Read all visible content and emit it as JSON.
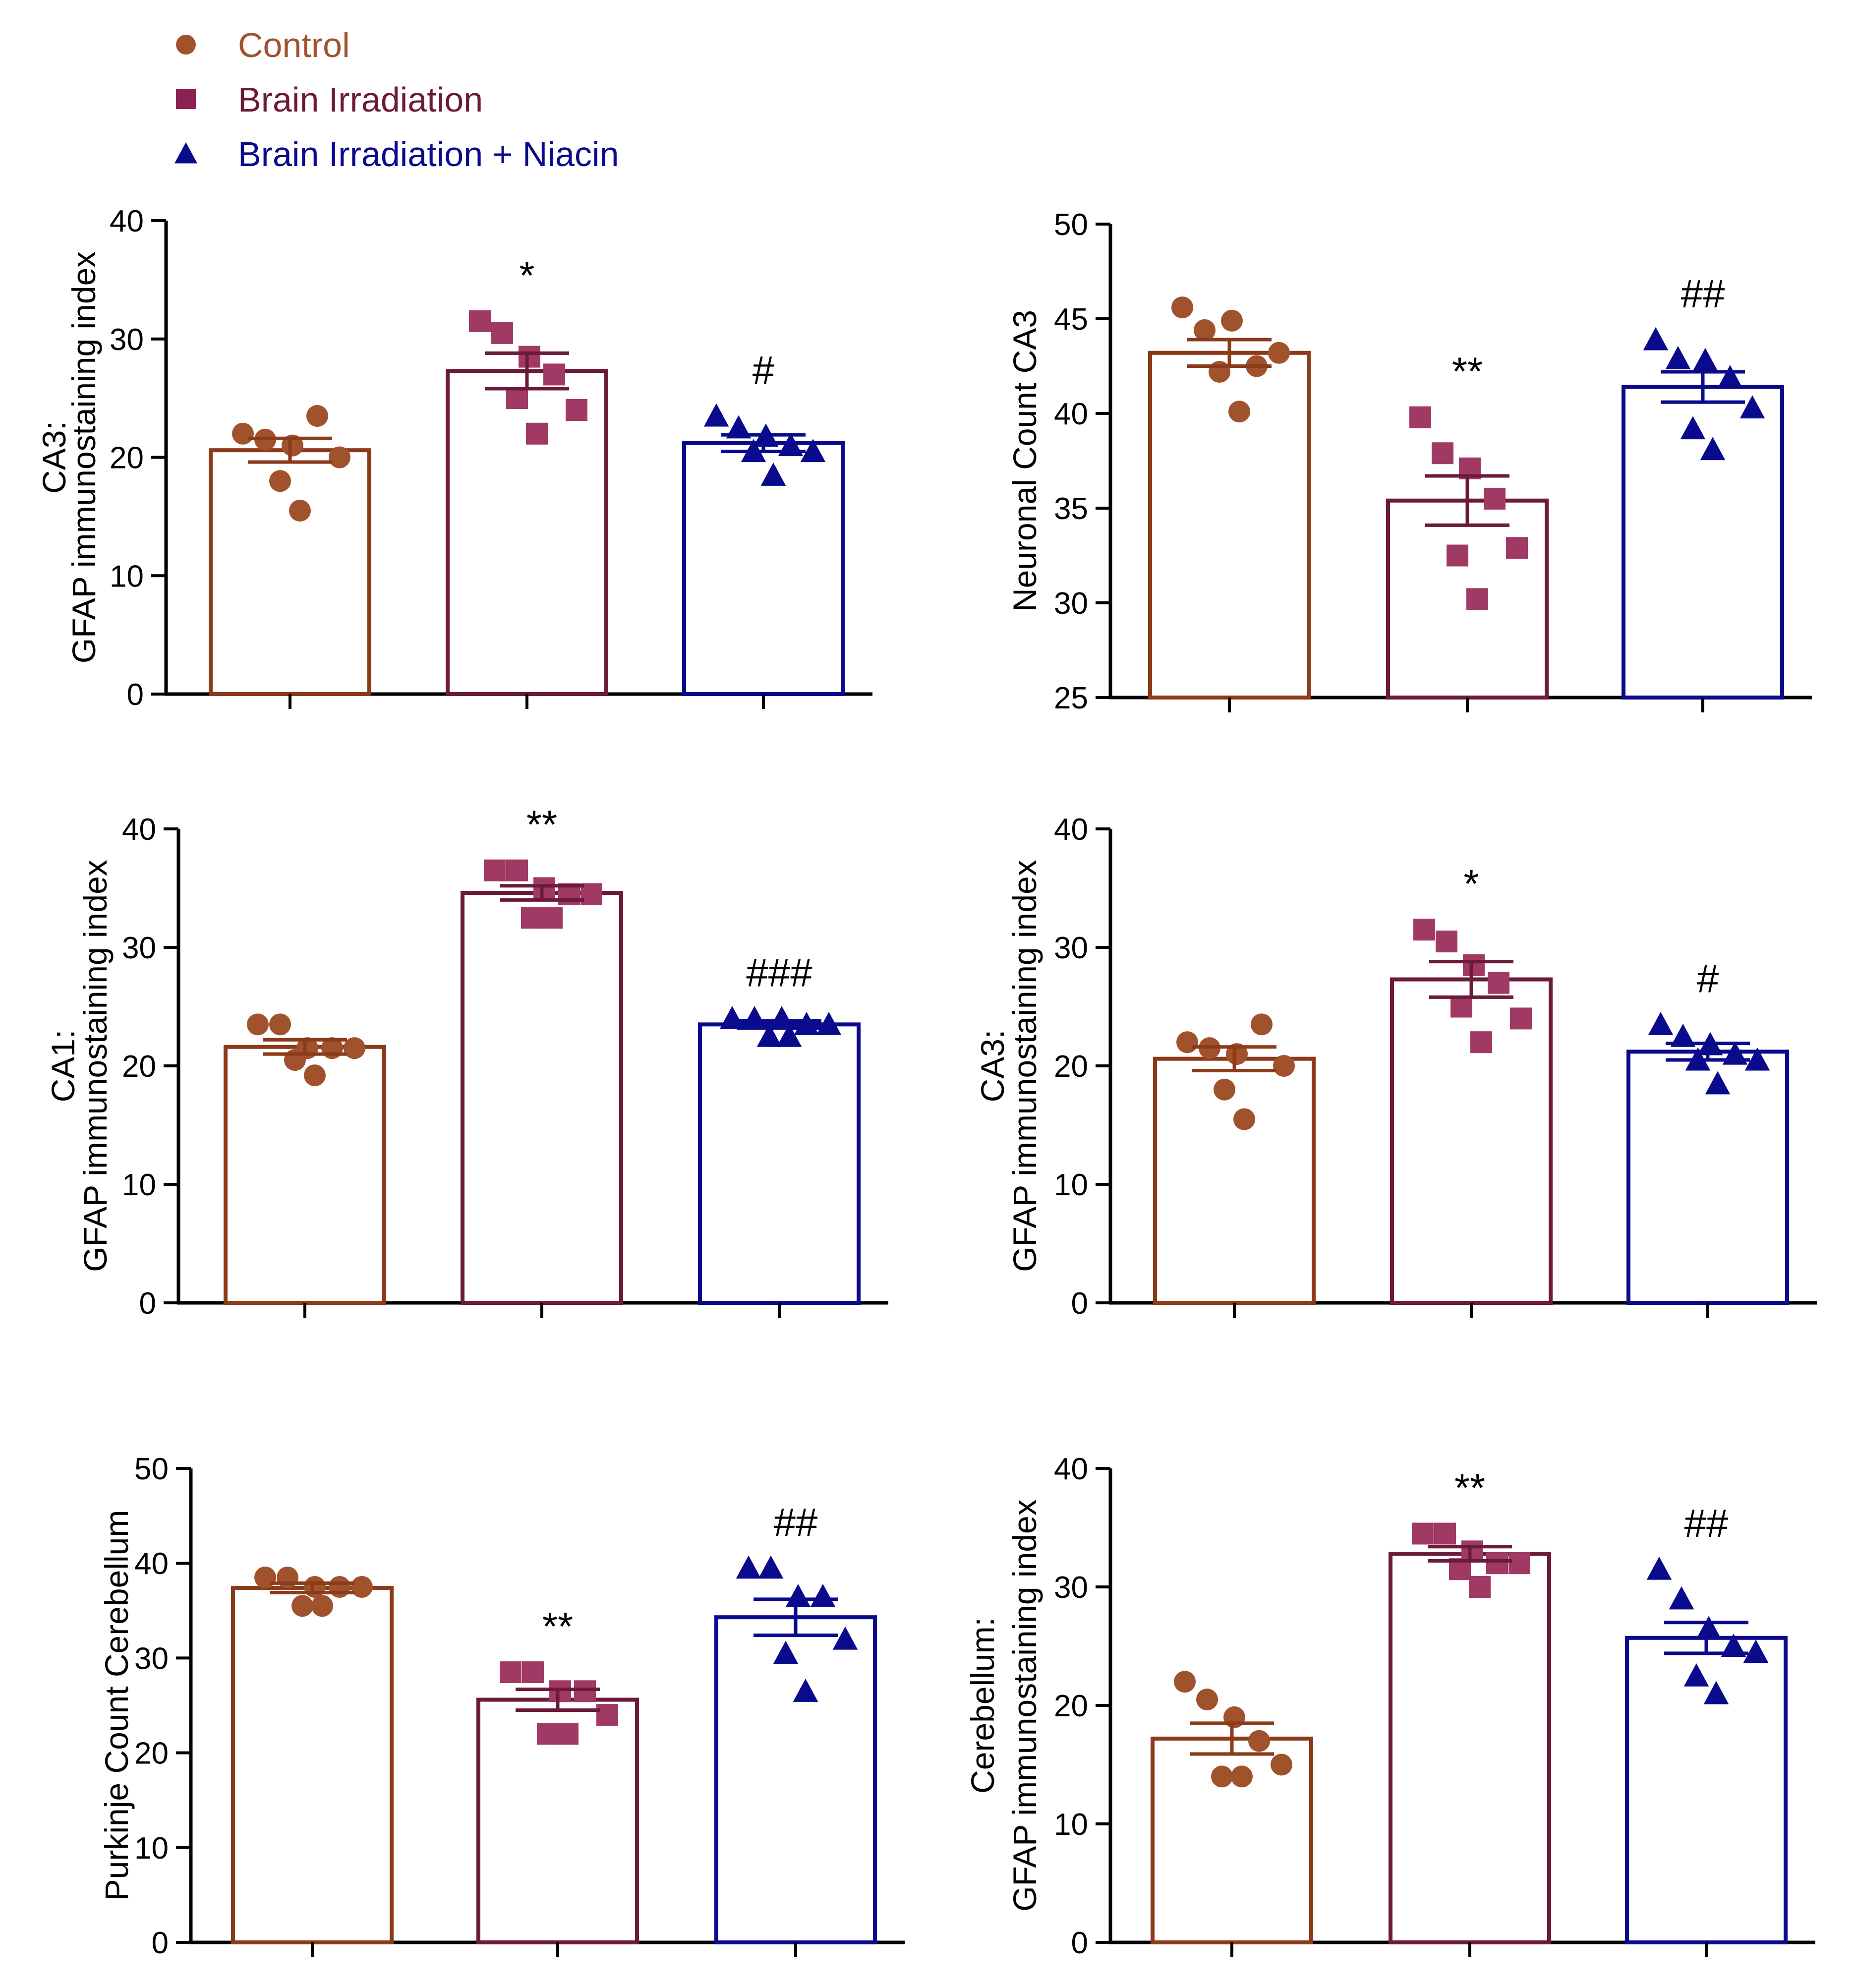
{
  "legend": {
    "placement": "top-left",
    "items": [
      {
        "label": "Control",
        "marker": "circle",
        "color": "#A0522D"
      },
      {
        "label": "Brain Irradiation",
        "marker": "square",
        "color": "#8B2252"
      },
      {
        "label": "Brain Irradiation + Niacin",
        "marker": "triangle",
        "color": "#0A0A8C"
      }
    ]
  },
  "colors": {
    "control_bar": "#8B3A1A",
    "control_point": "#A0522D",
    "irradiation_bar": "#6B1A3A",
    "irradiation_point": "#A03A64",
    "niacin_bar": "#0A0A8C",
    "niacin_point": "#0A0A8C",
    "axis": "#000000"
  },
  "chart_data": [
    {
      "type": "bar",
      "panel": "top-left",
      "ylabel_line1": "CA3:",
      "ylabel_line2": "GFAP immunostaining index",
      "ylim": [
        0,
        40
      ],
      "yticks": [
        0,
        10,
        20,
        30,
        40
      ],
      "categories": [
        "Control",
        "Brain Irradiation",
        "Brain Irradiation + Niacin"
      ],
      "values": [
        20.6,
        27.3,
        21.2
      ],
      "sem": [
        1.0,
        1.5,
        0.7
      ],
      "points": [
        [
          22,
          21.5,
          21,
          23.5,
          20,
          18,
          15.5
        ],
        [
          31.5,
          30.5,
          28.5,
          27,
          24,
          25,
          22
        ],
        [
          23.5,
          22.5,
          21.8,
          21,
          20.5,
          20.5,
          18.5
        ]
      ],
      "annotations": [
        "",
        "*",
        "#"
      ]
    },
    {
      "type": "bar",
      "panel": "top-right",
      "ylabel_line1": "",
      "ylabel_line2": "Neuronal Count CA3",
      "ylim": [
        25,
        50
      ],
      "yticks": [
        25,
        30,
        35,
        40,
        45,
        50
      ],
      "categories": [
        "Control",
        "Brain Irradiation",
        "Brain Irradiation + Niacin"
      ],
      "values": [
        43.2,
        35.4,
        41.4
      ],
      "sem": [
        0.7,
        1.3,
        0.8
      ],
      "points": [
        [
          45.6,
          44.4,
          44.9,
          42.5,
          43.2,
          42.2,
          40.1
        ],
        [
          39.8,
          37.9,
          37.1,
          35.5,
          32.9,
          32.5,
          30.2
        ],
        [
          43.9,
          42.9,
          42.8,
          41.9,
          40.3,
          39.2,
          38.1
        ]
      ],
      "annotations": [
        "",
        "**",
        "##"
      ]
    },
    {
      "type": "bar",
      "panel": "middle-left",
      "ylabel_line1": "CA1:",
      "ylabel_line2": "GFAP immunostaining index",
      "ylim": [
        0,
        40
      ],
      "yticks": [
        0,
        10,
        20,
        30,
        40
      ],
      "categories": [
        "Control",
        "Brain Irradiation",
        "Brain Irradiation + Niacin"
      ],
      "values": [
        21.6,
        34.6,
        23.5
      ],
      "sem": [
        0.6,
        0.6,
        0.3
      ],
      "points": [
        [
          23.5,
          23.5,
          21.5,
          21.5,
          21.5,
          20.5,
          19.2
        ],
        [
          36.5,
          36.5,
          35,
          34.5,
          34.5,
          32.5,
          32.5
        ],
        [
          24,
          24,
          24,
          23.5,
          23.5,
          22.5,
          22.5
        ]
      ],
      "annotations": [
        "",
        "**",
        "###"
      ]
    },
    {
      "type": "bar",
      "panel": "middle-right",
      "ylabel_line1": "CA3:",
      "ylabel_line2": "GFAP immunostaining index",
      "ylim": [
        0,
        40
      ],
      "yticks": [
        0,
        10,
        20,
        30,
        40
      ],
      "categories": [
        "Control",
        "Brain Irradiation",
        "Brain Irradiation + Niacin"
      ],
      "values": [
        20.6,
        27.3,
        21.2
      ],
      "sem": [
        1.0,
        1.5,
        0.7
      ],
      "points": [
        [
          22,
          21.5,
          21,
          23.5,
          20,
          18,
          15.5
        ],
        [
          31.5,
          30.5,
          28.5,
          27,
          24,
          25,
          22
        ],
        [
          23.5,
          22.5,
          21.8,
          21,
          20.5,
          20.5,
          18.5
        ]
      ],
      "annotations": [
        "",
        "*",
        "#"
      ]
    },
    {
      "type": "bar",
      "panel": "bottom-left",
      "ylabel_line1": "",
      "ylabel_line2": "Purkinje Count Cerebellum",
      "ylim": [
        0,
        50
      ],
      "yticks": [
        0,
        10,
        20,
        30,
        40,
        50
      ],
      "categories": [
        "Control",
        "Brain Irradiation",
        "Brain Irradiation + Niacin"
      ],
      "values": [
        37.4,
        25.6,
        34.3
      ],
      "sem": [
        0.5,
        1.1,
        1.9
      ],
      "points": [
        [
          38.5,
          38.5,
          37.5,
          37.5,
          37.5,
          35.5,
          35.5
        ],
        [
          28.5,
          28.5,
          26.5,
          26.5,
          24,
          22,
          22
        ],
        [
          39.5,
          39.5,
          36.5,
          36.5,
          32,
          30.5,
          26.5
        ]
      ],
      "annotations": [
        "",
        "**",
        "##"
      ]
    },
    {
      "type": "bar",
      "panel": "bottom-right",
      "ylabel_line1": "Cerebellum:",
      "ylabel_line2": "GFAP immunostaining index",
      "ylim": [
        0,
        40
      ],
      "yticks": [
        0,
        10,
        20,
        30,
        40
      ],
      "categories": [
        "Control",
        "Brain Irradiation",
        "Brain Irradiation + Niacin"
      ],
      "values": [
        17.2,
        32.8,
        25.7
      ],
      "sem": [
        1.3,
        0.6,
        1.3
      ],
      "points": [
        [
          22,
          20.5,
          19,
          17,
          15,
          14,
          14
        ],
        [
          34.5,
          34.5,
          33,
          32,
          32,
          31.5,
          30
        ],
        [
          31.5,
          29,
          26.5,
          25,
          24.5,
          22.5,
          21
        ]
      ],
      "annotations": [
        "",
        "**",
        "##"
      ]
    }
  ]
}
